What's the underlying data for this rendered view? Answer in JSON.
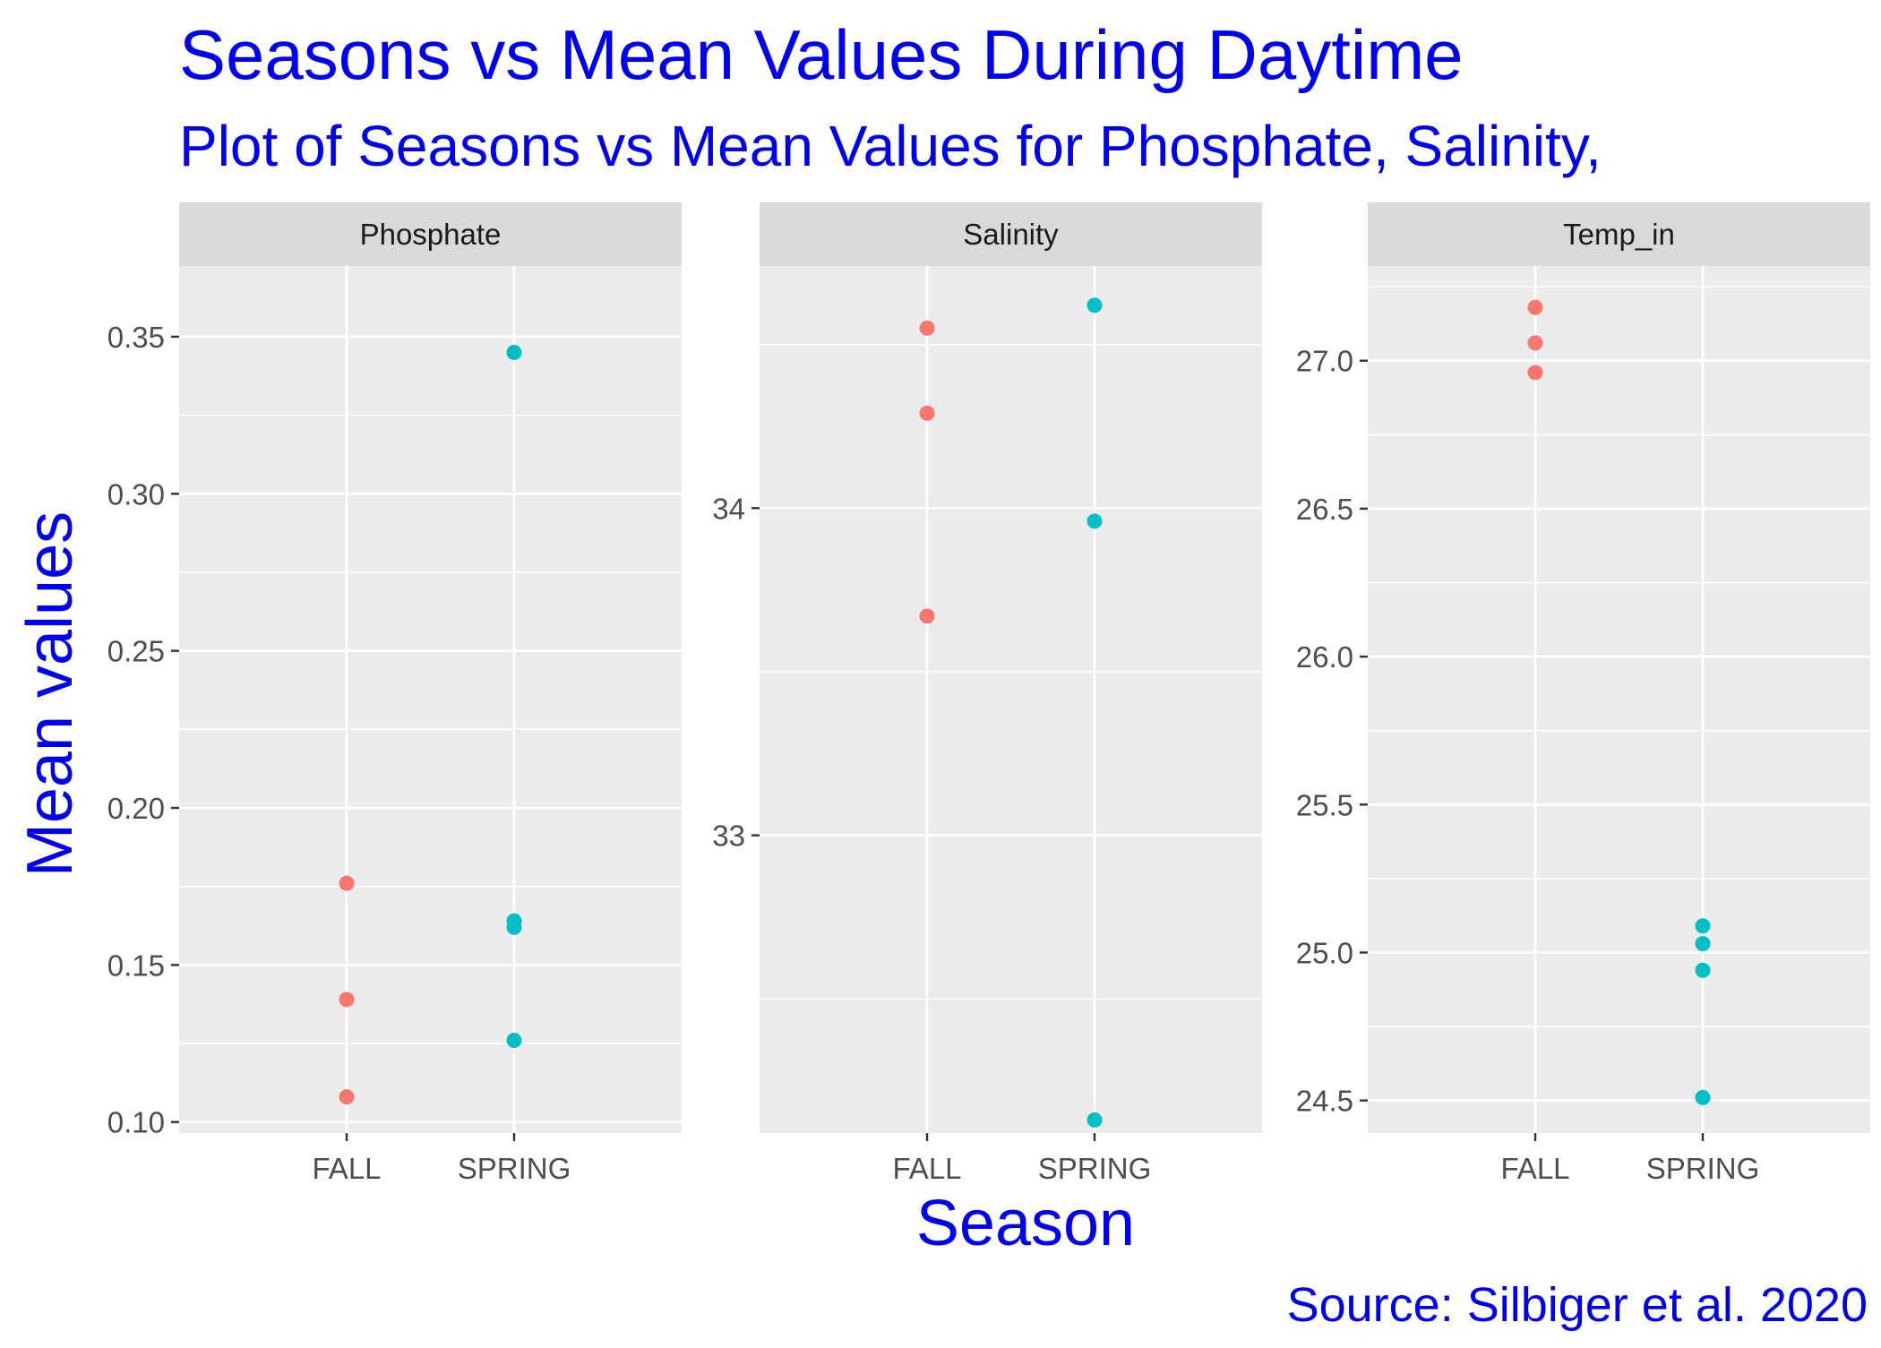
{
  "chart_data": {
    "type": "scatter",
    "title": "Seasons vs Mean Values During Daytime",
    "subtitle": "Plot of Seasons vs Mean Values for Phosphate, Salinity,",
    "xlabel": "Season",
    "ylabel": "Mean values",
    "caption": "Source: Silbiger et al. 2020",
    "categories": [
      "FALL",
      "SPRING"
    ],
    "colors": {
      "FALL": "#f8766d",
      "SPRING": "#00bfc4"
    },
    "grid": true,
    "facets": [
      {
        "name": "Phosphate",
        "ylim": [
          0.0965,
          0.3725
        ],
        "yticks": [
          "0.10",
          "0.15",
          "0.20",
          "0.25",
          "0.30",
          "0.35"
        ],
        "points": {
          "FALL": [
            0.176,
            0.139,
            0.108
          ],
          "SPRING": [
            0.345,
            0.164,
            0.162,
            0.126
          ]
        }
      },
      {
        "name": "Salinity",
        "ylim": [
          32.09,
          34.74
        ],
        "yticks": [
          "33",
          "34"
        ],
        "points": {
          "FALL": [
            34.55,
            34.29,
            33.67
          ],
          "SPRING": [
            34.62,
            33.96,
            32.13
          ]
        }
      },
      {
        "name": "Temp_in",
        "ylim": [
          24.39,
          27.32
        ],
        "yticks": [
          "24.5",
          "25.0",
          "25.5",
          "26.0",
          "26.5",
          "27.0"
        ],
        "points": {
          "FALL": [
            27.18,
            27.06,
            26.96
          ],
          "SPRING": [
            25.09,
            25.03,
            24.94,
            24.51
          ]
        }
      }
    ]
  }
}
